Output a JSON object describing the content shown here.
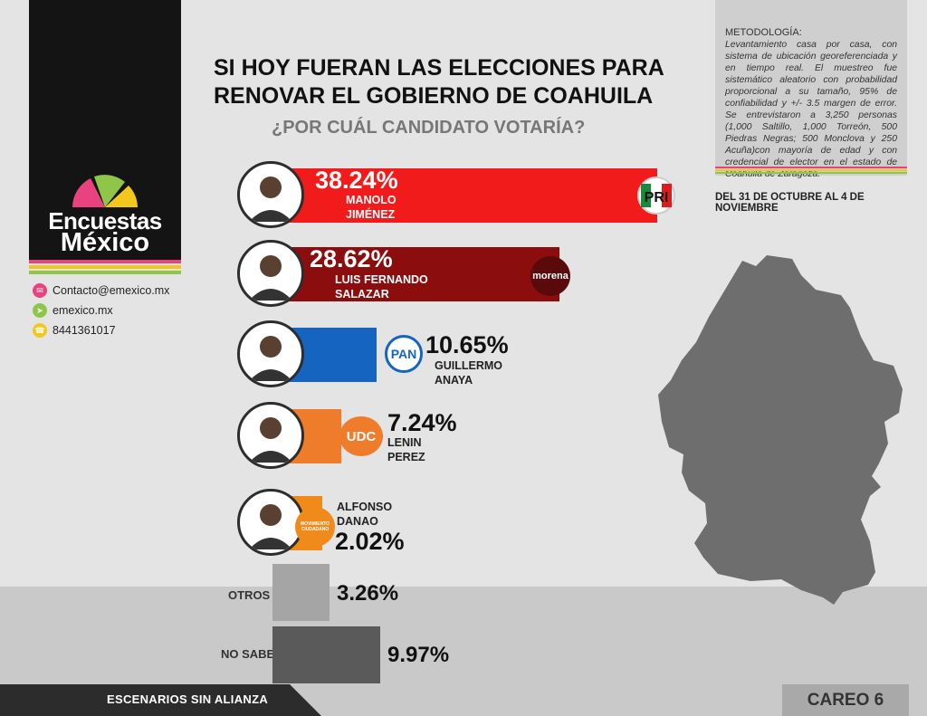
{
  "brand": {
    "line1": "Encuestas",
    "line2": "México"
  },
  "contact": {
    "email": "Contacto@emexico.mx",
    "web": "emexico.mx",
    "phone": "8441361017"
  },
  "header": {
    "title_line1": "SI HOY FUERAN LAS ELECCIONES PARA",
    "title_line2": "RENOVAR EL GOBIERNO DE COAHUILA",
    "subtitle": "¿POR CUÁL CANDIDATO VOTARÍA?"
  },
  "methodology": {
    "heading": "METODOLOGÍA:",
    "body": "Levantamiento casa por casa, con sistema de ubicación georeferenciada y en tiempo real. El muestreo fue sistemático aleatorio con probabilidad proporcional a su tamaño, 95% de confiabilidad y +/- 3.5 margen de error. Se entrevistaron a 3,250 personas (1,000 Saltillo, 1,000 Torreón, 500 Piedras Negras; 500 Monclova y 250 Acuña)con mayoría de edad y con credencial de elector en el estado de Coahuila de Zaragoza.",
    "dates": "DEL 31 DE OCTUBRE AL 4 DE NOVIEMBRE"
  },
  "colors": {
    "pri": "#f21b1b",
    "morena": "#8b0d0d",
    "pan": "#1565c0",
    "udc": "#ef7c2a",
    "mc": "#f08a1a",
    "otros": "#a5a5a5",
    "nosabe": "#5a5a5a",
    "stripe_green": "#8fc64a",
    "stripe_pink": "#e8437f",
    "stripe_yellow": "#f3c81c"
  },
  "chart_data": {
    "type": "bar",
    "categories": [
      "MANOLO JIMÉNEZ",
      "LUIS FERNANDO SALAZAR",
      "GUILLERMO ANAYA",
      "LENIN PEREZ",
      "ALFONSO DANAO",
      "OTROS",
      "NO SABE"
    ],
    "values": [
      38.24,
      28.62,
      10.65,
      7.24,
      2.02,
      3.26,
      9.97
    ],
    "labels": [
      "38.24%",
      "28.62%",
      "10.65%",
      "7.24%",
      "2.02%",
      "3.26%",
      "9.97%"
    ],
    "parties": [
      "PRI",
      "morena",
      "PAN",
      "UDC",
      "MOVIMIENTO CIUDADANO",
      "",
      ""
    ],
    "name_lines": [
      [
        "MANOLO",
        "JIMÉNEZ"
      ],
      [
        "LUIS FERNANDO",
        "SALAZAR"
      ],
      [
        "GUILLERMO",
        "ANAYA"
      ],
      [
        "LENIN",
        "PEREZ"
      ],
      [
        "ALFONSO",
        "DANAO"
      ],
      [
        "OTROS"
      ],
      [
        "NO SABE"
      ]
    ],
    "title": "SI HOY FUERAN LAS ELECCIONES PARA RENOVAR EL GOBIERNO DE COAHUILA"
  },
  "footer": {
    "left": "ESCENARIOS SIN ALIANZA",
    "right": "CAREO 6"
  }
}
